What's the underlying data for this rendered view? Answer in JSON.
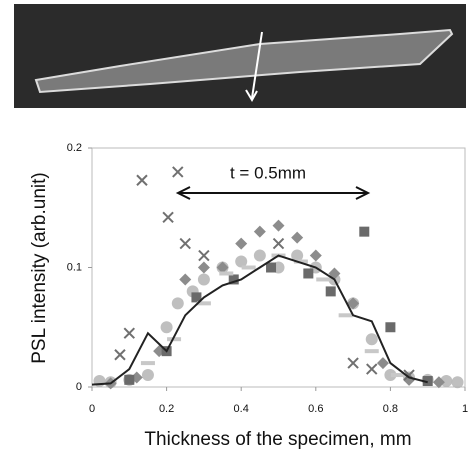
{
  "chart_data": {
    "type": "scatter",
    "xlabel": "Thickness of the specimen, mm",
    "ylabel": "PSL intensity (arb.unit)",
    "annotations": [
      "t = 0.5mm"
    ],
    "xlim": [
      0,
      1
    ],
    "xticks": [
      0,
      0.2,
      0.4,
      0.6,
      0.8,
      1
    ],
    "ylim": [
      0,
      0.2
    ],
    "yticks": [
      0,
      0.1,
      0.2
    ],
    "series": [
      {
        "marker": "circle",
        "color": "#b4b4b4",
        "x": [
          0.02,
          0.05,
          0.1,
          0.15,
          0.2,
          0.23,
          0.27,
          0.3,
          0.35,
          0.4,
          0.45,
          0.5,
          0.55,
          0.6,
          0.65,
          0.7,
          0.75,
          0.8,
          0.85,
          0.9,
          0.95,
          0.98
        ],
        "values": [
          0.005,
          0.004,
          0.006,
          0.01,
          0.05,
          0.07,
          0.08,
          0.09,
          0.1,
          0.105,
          0.11,
          0.1,
          0.11,
          0.1,
          0.09,
          0.07,
          0.04,
          0.01,
          0.008,
          0.006,
          0.005,
          0.004
        ]
      },
      {
        "marker": "diamond",
        "color": "#8c8c8c",
        "x": [
          0.05,
          0.12,
          0.18,
          0.25,
          0.3,
          0.35,
          0.4,
          0.45,
          0.5,
          0.55,
          0.6,
          0.65,
          0.7,
          0.78,
          0.85,
          0.93
        ],
        "values": [
          0.003,
          0.008,
          0.03,
          0.09,
          0.1,
          0.1,
          0.12,
          0.13,
          0.135,
          0.125,
          0.11,
          0.095,
          0.07,
          0.02,
          0.006,
          0.004
        ]
      },
      {
        "marker": "square",
        "color": "#6a6a6a",
        "x": [
          0.1,
          0.2,
          0.28,
          0.38,
          0.48,
          0.58,
          0.64,
          0.73,
          0.8,
          0.9
        ],
        "values": [
          0.006,
          0.03,
          0.075,
          0.09,
          0.1,
          0.095,
          0.08,
          0.13,
          0.05,
          0.005
        ]
      },
      {
        "marker": "dash",
        "color": "#c8c8c8",
        "x": [
          0.15,
          0.22,
          0.3,
          0.36,
          0.42,
          0.5,
          0.56,
          0.62,
          0.68,
          0.75,
          0.82
        ],
        "values": [
          0.02,
          0.04,
          0.07,
          0.095,
          0.1,
          0.11,
          0.105,
          0.09,
          0.06,
          0.03,
          0.01
        ]
      },
      {
        "marker": "x",
        "color": "#707070",
        "x": [
          0.075,
          0.1,
          0.134,
          0.204,
          0.23,
          0.25,
          0.3,
          0.5,
          0.7,
          0.75,
          0.85
        ],
        "values": [
          0.027,
          0.045,
          0.173,
          0.142,
          0.18,
          0.12,
          0.11,
          0.12,
          0.02,
          0.015,
          0.01
        ]
      },
      {
        "marker": "line",
        "color": "#222222",
        "x": [
          0,
          0.05,
          0.1,
          0.15,
          0.2,
          0.25,
          0.3,
          0.35,
          0.4,
          0.45,
          0.5,
          0.55,
          0.6,
          0.65,
          0.7,
          0.75,
          0.8,
          0.85,
          0.9
        ],
        "values": [
          0.002,
          0.003,
          0.015,
          0.045,
          0.03,
          0.06,
          0.075,
          0.085,
          0.09,
          0.1,
          0.11,
          0.105,
          0.1,
          0.09,
          0.06,
          0.055,
          0.02,
          0.008,
          0.004
        ]
      }
    ]
  }
}
